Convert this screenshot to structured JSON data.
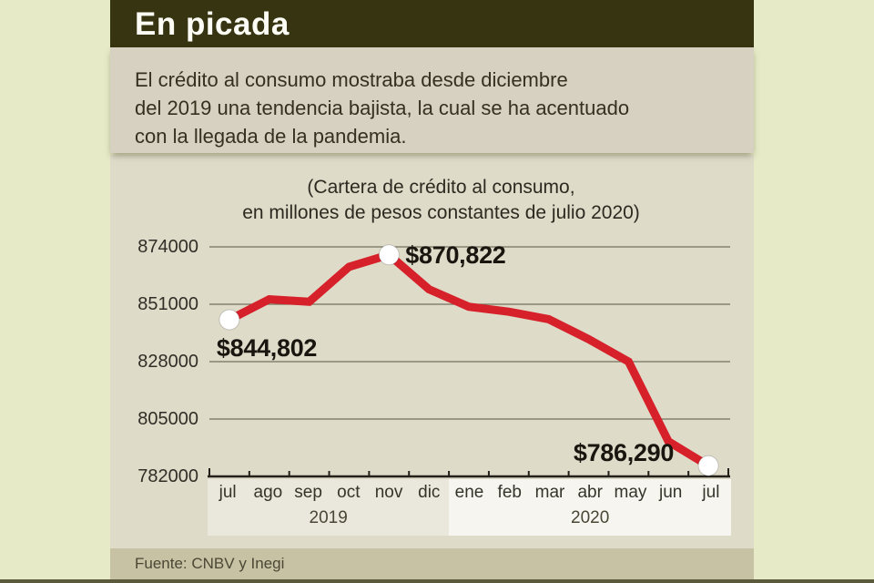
{
  "header": {
    "title": "En picada"
  },
  "subtitle": {
    "lines": [
      "El crédito al consumo mostraba desde diciembre",
      "del 2019 una tendencia bajista, la cual se ha acentuado",
      "con la llegada de la pandemia."
    ]
  },
  "chart_data": {
    "type": "line",
    "title_lines": [
      "(Cartera de crédito al consumo,",
      "en millones de pesos constantes de julio 2020)"
    ],
    "categories": [
      "jul",
      "ago",
      "sep",
      "oct",
      "nov",
      "dic",
      "ene",
      "feb",
      "mar",
      "abr",
      "may",
      "jun",
      "jul"
    ],
    "year_groups": [
      {
        "label": "2019",
        "span": 6
      },
      {
        "label": "2020",
        "span": 7
      }
    ],
    "values": [
      844802,
      853000,
      852000,
      866000,
      870822,
      857000,
      850000,
      848000,
      845000,
      837000,
      828000,
      796000,
      786290
    ],
    "labeled_points": [
      {
        "index": 0,
        "label": "$844,802",
        "anchor": "below-left"
      },
      {
        "index": 4,
        "label": "$870,822",
        "anchor": "right"
      },
      {
        "index": 12,
        "label": "$786,290",
        "anchor": "left"
      }
    ],
    "y_ticks": [
      874000,
      851000,
      828000,
      805000,
      782000
    ],
    "ylim": [
      782000,
      874000
    ],
    "grid": true,
    "legend": "none",
    "xlabel": "",
    "ylabel": "",
    "line_color": "#d6202a",
    "marker_color": "#ffffff"
  },
  "footer": {
    "source": "Fuente: CNBV y Inegi"
  }
}
